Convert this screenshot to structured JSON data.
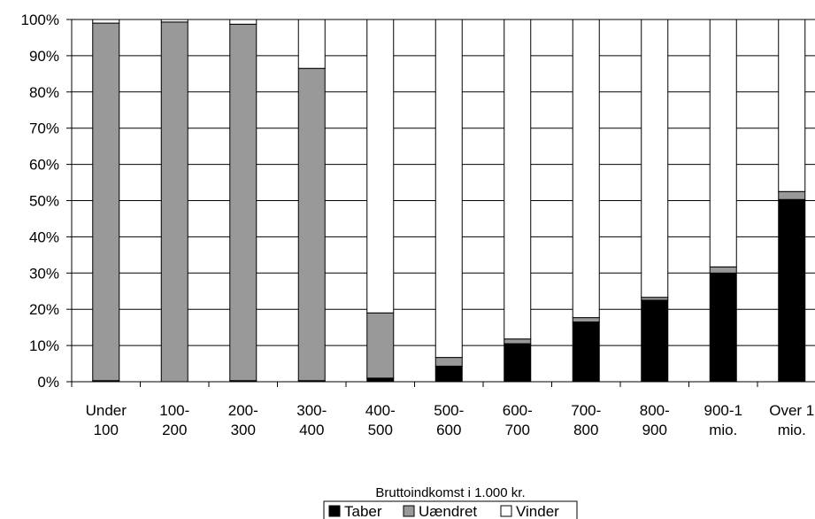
{
  "chart_data": {
    "type": "bar",
    "stacked": true,
    "percent": true,
    "categories": [
      [
        "Under",
        "100"
      ],
      [
        "100-",
        "200"
      ],
      [
        "200-",
        "300"
      ],
      [
        "300-",
        "400"
      ],
      [
        "400-",
        "500"
      ],
      [
        "500-",
        "600"
      ],
      [
        "600-",
        "700"
      ],
      [
        "700-",
        "800"
      ],
      [
        "800-",
        "900"
      ],
      [
        "900-1",
        "mio."
      ],
      [
        "Over 1",
        "mio."
      ]
    ],
    "series": [
      {
        "name": "Taber",
        "color": "#000000",
        "values": [
          0.3,
          0.0,
          0.3,
          0.3,
          1.0,
          4.3,
          10.5,
          16.5,
          22.5,
          30.0,
          50.3
        ]
      },
      {
        "name": "Uændret",
        "color": "#999999",
        "values": [
          98.7,
          99.3,
          98.4,
          86.2,
          18.0,
          2.4,
          1.3,
          1.2,
          0.8,
          1.7,
          2.2
        ]
      },
      {
        "name": "Vinder",
        "color": "#ffffff",
        "values": [
          1.0,
          0.7,
          1.3,
          13.5,
          81.0,
          93.3,
          88.2,
          82.3,
          76.7,
          68.3,
          47.5
        ]
      }
    ],
    "yticks": [
      "0%",
      "10%",
      "20%",
      "30%",
      "40%",
      "50%",
      "60%",
      "70%",
      "80%",
      "90%",
      "100%"
    ],
    "ylim": [
      0,
      100
    ],
    "xlabel": "Bruttoindkomst i 1.000 kr.",
    "ylabel": "",
    "title": "",
    "grid": true,
    "legend_position": "bottom"
  }
}
